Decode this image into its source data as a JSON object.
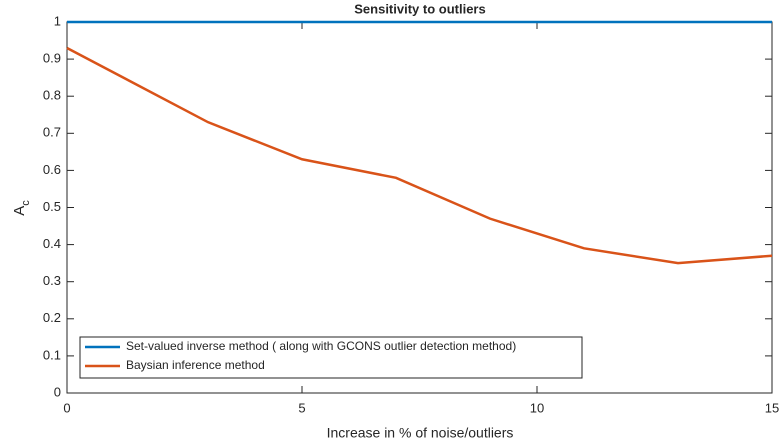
{
  "chart_data": {
    "type": "line",
    "title": "Sensitivity to outliers",
    "x_label": "Increase in % of noise/outliers",
    "y_label": "A",
    "y_label_sub": "c",
    "x": [
      0,
      3,
      5,
      7,
      9,
      11,
      13,
      15
    ],
    "series": [
      {
        "name": "Set-valued inverse method ( along with GCONS outlier detection method)",
        "color": "#0072bd",
        "values": [
          1,
          1,
          1,
          1,
          1,
          1,
          1,
          1
        ]
      },
      {
        "name": "Baysian inference method",
        "color": "#d95319",
        "values": [
          0.93,
          0.73,
          0.63,
          0.58,
          0.47,
          0.39,
          0.35,
          0.37
        ]
      }
    ],
    "xlim": [
      0,
      15
    ],
    "xticks": [
      0,
      5,
      10,
      15
    ],
    "ylim": [
      0,
      1
    ],
    "yticks": [
      0,
      0.1,
      0.2,
      0.3,
      0.4,
      0.5,
      0.6,
      0.7,
      0.8,
      0.9,
      1
    ],
    "legend": "lower-left"
  }
}
